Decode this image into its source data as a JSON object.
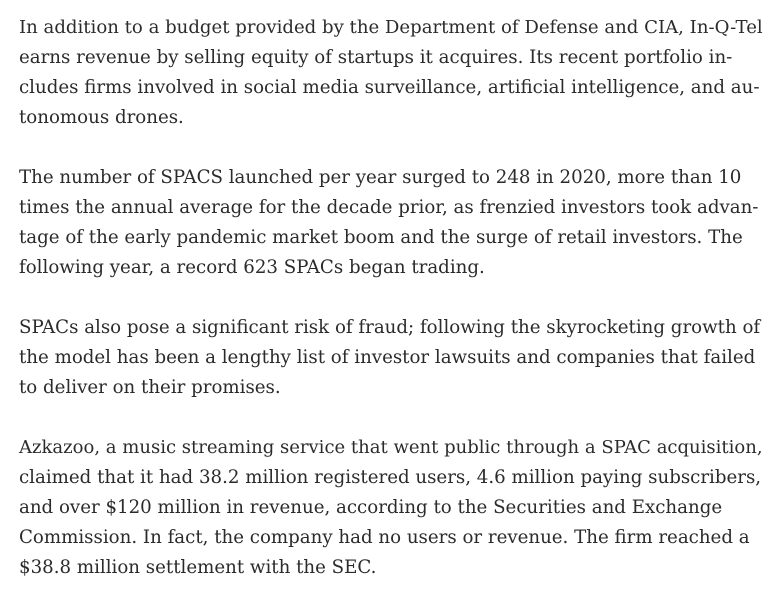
{
  "paragraphs": [
    {
      "lines": [
        "In addition to a budget provided by the Department of Defense and CIA, In-Q-Tel",
        "earns revenue by selling equity of startups it acquires. Its recent portfolio in-",
        "cludes firms involved in social media surveillance, artificial intelligence, and au-",
        "tonomous drones."
      ]
    },
    {
      "lines": [
        "The number of SPACS launched per year surged to 248 in 2020, more than 10",
        "times the annual average for the decade prior, as frenzied investors took advan-",
        "tage of the early pandemic market boom and the surge of retail investors. The",
        "following year, a record 623 SPACs began trading."
      ]
    },
    {
      "lines": [
        "SPACs also pose a significant risk of fraud; following the skyrocketing growth of",
        "the model has been a lengthy list of investor lawsuits and companies that failed",
        "to deliver on their promises."
      ]
    },
    {
      "lines": [
        "Azkazoo, a music streaming service that went public through a SPAC acquisition,",
        "claimed that it had 38.2 million registered users, 4.6 million paying subscribers,",
        "and over $120 million in revenue, according to the Securities and Exchange",
        "Commission. In fact, the company had no users or revenue. The firm reached a",
        "$38.8 million settlement with the SEC."
      ]
    }
  ]
}
